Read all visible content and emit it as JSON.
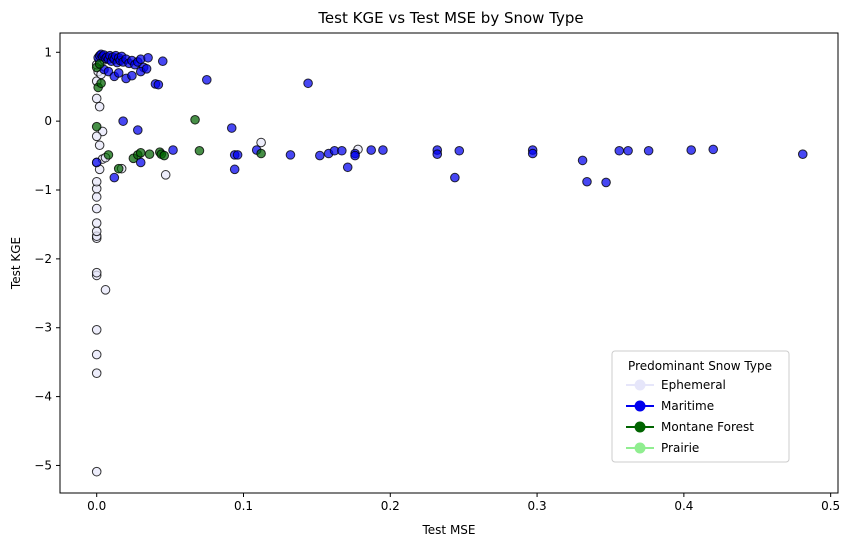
{
  "chart_data": {
    "type": "scatter",
    "title": "Test KGE vs Test MSE by Snow Type",
    "xlabel": "Test MSE",
    "ylabel": "Test KGE",
    "xlim": [
      -0.025,
      0.505
    ],
    "ylim": [
      -5.4,
      1.28
    ],
    "x_ticks": [
      0.0,
      0.1,
      0.2,
      0.3,
      0.4,
      0.5
    ],
    "x_tick_labels": [
      "0.0",
      "0.1",
      "0.2",
      "0.3",
      "0.4",
      "0.5"
    ],
    "y_ticks": [
      1,
      0,
      -1,
      -2,
      -3,
      -4,
      -5
    ],
    "y_tick_labels": [
      "1",
      "0",
      "−1",
      "−2",
      "−3",
      "−4",
      "−5"
    ],
    "grid": false,
    "legend": {
      "title": "Predominant Snow Type",
      "placement": "lower-right",
      "entries": [
        "Ephemeral",
        "Maritime",
        "Montane Forest",
        "Prairie"
      ]
    },
    "series": [
      {
        "name": "Ephemeral",
        "color": "#e6e6fa",
        "points": [
          [
            0.0,
            -5.09
          ],
          [
            0.0,
            -3.66
          ],
          [
            0.0,
            -3.39
          ],
          [
            0.0,
            -3.03
          ],
          [
            0.0,
            -2.24
          ],
          [
            0.0,
            -2.2
          ],
          [
            0.006,
            -2.45
          ],
          [
            0.0,
            -1.7
          ],
          [
            0.0,
            -1.67
          ],
          [
            0.0,
            -1.6
          ],
          [
            0.0,
            -1.48
          ],
          [
            0.0,
            -1.27
          ],
          [
            0.0,
            -1.1
          ],
          [
            0.0,
            -0.98
          ],
          [
            0.0,
            -0.88
          ],
          [
            0.0,
            -0.6
          ],
          [
            0.002,
            -0.7
          ],
          [
            0.004,
            -0.55
          ],
          [
            0.004,
            -0.15
          ],
          [
            0.002,
            -0.35
          ],
          [
            0.0,
            -0.22
          ],
          [
            0.0,
            0.33
          ],
          [
            0.002,
            0.21
          ],
          [
            0.0,
            0.58
          ],
          [
            0.001,
            0.72
          ],
          [
            0.0,
            0.82
          ],
          [
            0.002,
            0.87
          ],
          [
            0.003,
            0.68
          ],
          [
            0.005,
            0.89
          ],
          [
            0.006,
            -0.53
          ],
          [
            0.017,
            -0.69
          ],
          [
            0.047,
            -0.78
          ],
          [
            0.112,
            -0.31
          ],
          [
            0.178,
            -0.41
          ]
        ]
      },
      {
        "name": "Maritime",
        "color": "#0000ee",
        "points": [
          [
            0.001,
            0.92
          ],
          [
            0.002,
            0.95
          ],
          [
            0.003,
            0.97
          ],
          [
            0.004,
            0.94
          ],
          [
            0.005,
            0.96
          ],
          [
            0.006,
            0.91
          ],
          [
            0.007,
            0.93
          ],
          [
            0.008,
            0.9
          ],
          [
            0.009,
            0.95
          ],
          [
            0.01,
            0.87
          ],
          [
            0.011,
            0.93
          ],
          [
            0.012,
            0.9
          ],
          [
            0.013,
            0.95
          ],
          [
            0.014,
            0.85
          ],
          [
            0.015,
            0.92
          ],
          [
            0.016,
            0.88
          ],
          [
            0.017,
            0.94
          ],
          [
            0.018,
            0.86
          ],
          [
            0.02,
            0.9
          ],
          [
            0.022,
            0.84
          ],
          [
            0.024,
            0.88
          ],
          [
            0.026,
            0.82
          ],
          [
            0.028,
            0.86
          ],
          [
            0.03,
            0.9
          ],
          [
            0.032,
            0.78
          ],
          [
            0.035,
            0.92
          ],
          [
            0.005,
            0.75
          ],
          [
            0.008,
            0.72
          ],
          [
            0.012,
            0.65
          ],
          [
            0.015,
            0.7
          ],
          [
            0.02,
            0.62
          ],
          [
            0.024,
            0.66
          ],
          [
            0.03,
            0.72
          ],
          [
            0.034,
            0.76
          ],
          [
            0.04,
            0.54
          ],
          [
            0.042,
            0.53
          ],
          [
            0.045,
            0.87
          ],
          [
            0.075,
            0.6
          ],
          [
            0.144,
            0.55
          ],
          [
            0.018,
            0.0
          ],
          [
            0.028,
            -0.13
          ],
          [
            0.0,
            -0.6
          ],
          [
            0.012,
            -0.82
          ],
          [
            0.03,
            -0.6
          ],
          [
            0.052,
            -0.42
          ],
          [
            0.092,
            -0.1
          ],
          [
            0.094,
            -0.49
          ],
          [
            0.096,
            -0.49
          ],
          [
            0.094,
            -0.7
          ],
          [
            0.109,
            -0.42
          ],
          [
            0.132,
            -0.49
          ],
          [
            0.152,
            -0.5
          ],
          [
            0.158,
            -0.47
          ],
          [
            0.162,
            -0.43
          ],
          [
            0.167,
            -0.43
          ],
          [
            0.171,
            -0.67
          ],
          [
            0.176,
            -0.47
          ],
          [
            0.176,
            -0.5
          ],
          [
            0.187,
            -0.42
          ],
          [
            0.195,
            -0.42
          ],
          [
            0.232,
            -0.42
          ],
          [
            0.232,
            -0.48
          ],
          [
            0.244,
            -0.82
          ],
          [
            0.247,
            -0.43
          ],
          [
            0.297,
            -0.42
          ],
          [
            0.297,
            -0.47
          ],
          [
            0.331,
            -0.57
          ],
          [
            0.334,
            -0.88
          ],
          [
            0.347,
            -0.89
          ],
          [
            0.356,
            -0.43
          ],
          [
            0.362,
            -0.43
          ],
          [
            0.376,
            -0.43
          ],
          [
            0.405,
            -0.42
          ],
          [
            0.42,
            -0.41
          ],
          [
            0.481,
            -0.48
          ]
        ]
      },
      {
        "name": "Montane Forest",
        "color": "#006400",
        "points": [
          [
            0.001,
            0.49
          ],
          [
            0.003,
            0.55
          ],
          [
            0.0,
            0.78
          ],
          [
            0.002,
            0.83
          ],
          [
            0.0,
            -0.08
          ],
          [
            0.008,
            -0.49
          ],
          [
            0.015,
            -0.69
          ],
          [
            0.025,
            -0.54
          ],
          [
            0.028,
            -0.49
          ],
          [
            0.03,
            -0.46
          ],
          [
            0.036,
            -0.48
          ],
          [
            0.043,
            -0.45
          ],
          [
            0.044,
            -0.48
          ],
          [
            0.046,
            -0.5
          ],
          [
            0.067,
            0.02
          ],
          [
            0.07,
            -0.43
          ],
          [
            0.112,
            -0.47
          ]
        ]
      },
      {
        "name": "Prairie",
        "color": "#90ee90",
        "points": []
      }
    ]
  }
}
